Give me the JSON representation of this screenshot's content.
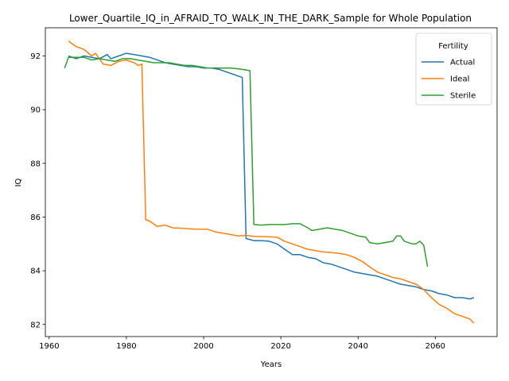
{
  "chart_data": {
    "type": "line",
    "title": "Lower_Quartile_IQ_in_AFRAID_TO_WALK_IN_THE_DARK_Sample for Whole Population",
    "xlabel": "Years",
    "ylabel": "IQ",
    "xlim": [
      1959,
      2076
    ],
    "ylim": [
      81.55,
      93.05
    ],
    "x_ticks": [
      1960,
      1980,
      2000,
      2020,
      2040,
      2060
    ],
    "y_ticks": [
      82,
      84,
      86,
      88,
      90,
      92
    ],
    "grid": false,
    "legend": {
      "title": "Fertility",
      "placement": "top-right"
    },
    "series": [
      {
        "name": "Actual",
        "color": "#1f77b4",
        "points": [
          [
            1965,
            92.0
          ],
          [
            1967,
            91.9
          ],
          [
            1969,
            92.0
          ],
          [
            1971,
            91.95
          ],
          [
            1973,
            91.9
          ],
          [
            1975,
            92.05
          ],
          [
            1976,
            91.9
          ],
          [
            1978,
            92.0
          ],
          [
            1980,
            92.1
          ],
          [
            1982,
            92.05
          ],
          [
            1984,
            92.0
          ],
          [
            1986,
            91.95
          ],
          [
            1988,
            91.85
          ],
          [
            1990,
            91.75
          ],
          [
            1992,
            91.7
          ],
          [
            1994,
            91.65
          ],
          [
            1996,
            91.6
          ],
          [
            1998,
            91.6
          ],
          [
            2000,
            91.55
          ],
          [
            2002,
            91.55
          ],
          [
            2004,
            91.5
          ],
          [
            2006,
            91.4
          ],
          [
            2008,
            91.3
          ],
          [
            2010,
            91.2
          ],
          [
            2011,
            85.2
          ],
          [
            2013,
            85.12
          ],
          [
            2015,
            85.12
          ],
          [
            2017,
            85.1
          ],
          [
            2019,
            85.0
          ],
          [
            2021,
            84.8
          ],
          [
            2023,
            84.6
          ],
          [
            2025,
            84.6
          ],
          [
            2027,
            84.5
          ],
          [
            2029,
            84.45
          ],
          [
            2031,
            84.3
          ],
          [
            2033,
            84.25
          ],
          [
            2035,
            84.15
          ],
          [
            2037,
            84.05
          ],
          [
            2039,
            83.95
          ],
          [
            2041,
            83.9
          ],
          [
            2043,
            83.85
          ],
          [
            2045,
            83.8
          ],
          [
            2047,
            83.7
          ],
          [
            2049,
            83.6
          ],
          [
            2051,
            83.5
          ],
          [
            2053,
            83.45
          ],
          [
            2055,
            83.4
          ],
          [
            2057,
            83.3
          ],
          [
            2059,
            83.25
          ],
          [
            2061,
            83.15
          ],
          [
            2063,
            83.1
          ],
          [
            2065,
            83.0
          ],
          [
            2067,
            83.0
          ],
          [
            2069,
            82.95
          ],
          [
            2070,
            83.0
          ]
        ]
      },
      {
        "name": "Ideal",
        "color": "#ff7f0e",
        "points": [
          [
            1965,
            92.55
          ],
          [
            1967,
            92.35
          ],
          [
            1969,
            92.25
          ],
          [
            1971,
            92.0
          ],
          [
            1972,
            92.1
          ],
          [
            1974,
            91.7
          ],
          [
            1976,
            91.65
          ],
          [
            1978,
            91.8
          ],
          [
            1980,
            91.85
          ],
          [
            1982,
            91.75
          ],
          [
            1983,
            91.65
          ],
          [
            1984,
            91.7
          ],
          [
            1985,
            85.9
          ],
          [
            1986,
            85.85
          ],
          [
            1988,
            85.65
          ],
          [
            1990,
            85.7
          ],
          [
            1992,
            85.6
          ],
          [
            1995,
            85.58
          ],
          [
            1998,
            85.55
          ],
          [
            2001,
            85.55
          ],
          [
            2003,
            85.45
          ],
          [
            2005,
            85.4
          ],
          [
            2007,
            85.35
          ],
          [
            2009,
            85.3
          ],
          [
            2011,
            85.32
          ],
          [
            2013,
            85.28
          ],
          [
            2016,
            85.27
          ],
          [
            2019,
            85.25
          ],
          [
            2021,
            85.1
          ],
          [
            2023,
            85.0
          ],
          [
            2025,
            84.9
          ],
          [
            2027,
            84.8
          ],
          [
            2029,
            84.75
          ],
          [
            2031,
            84.7
          ],
          [
            2033,
            84.68
          ],
          [
            2035,
            84.65
          ],
          [
            2037,
            84.6
          ],
          [
            2039,
            84.5
          ],
          [
            2041,
            84.35
          ],
          [
            2043,
            84.15
          ],
          [
            2045,
            83.95
          ],
          [
            2047,
            83.85
          ],
          [
            2049,
            83.75
          ],
          [
            2051,
            83.7
          ],
          [
            2053,
            83.6
          ],
          [
            2055,
            83.5
          ],
          [
            2057,
            83.3
          ],
          [
            2059,
            83.0
          ],
          [
            2061,
            82.75
          ],
          [
            2063,
            82.6
          ],
          [
            2065,
            82.4
          ],
          [
            2067,
            82.3
          ],
          [
            2069,
            82.2
          ],
          [
            2070,
            82.05
          ]
        ]
      },
      {
        "name": "Sterile",
        "color": "#2ca02c",
        "points": [
          [
            1964,
            91.55
          ],
          [
            1965,
            91.95
          ],
          [
            1967,
            91.95
          ],
          [
            1969,
            91.95
          ],
          [
            1971,
            91.85
          ],
          [
            1973,
            91.9
          ],
          [
            1975,
            91.85
          ],
          [
            1977,
            91.8
          ],
          [
            1979,
            91.9
          ],
          [
            1981,
            91.9
          ],
          [
            1983,
            91.85
          ],
          [
            1985,
            91.8
          ],
          [
            1987,
            91.75
          ],
          [
            1989,
            91.75
          ],
          [
            1991,
            91.75
          ],
          [
            1993,
            91.7
          ],
          [
            1995,
            91.65
          ],
          [
            1997,
            91.65
          ],
          [
            1999,
            91.6
          ],
          [
            2001,
            91.55
          ],
          [
            2003,
            91.55
          ],
          [
            2005,
            91.55
          ],
          [
            2007,
            91.55
          ],
          [
            2009,
            91.52
          ],
          [
            2011,
            91.48
          ],
          [
            2012,
            91.45
          ],
          [
            2013,
            85.72
          ],
          [
            2015,
            85.7
          ],
          [
            2017,
            85.72
          ],
          [
            2019,
            85.72
          ],
          [
            2021,
            85.72
          ],
          [
            2023,
            85.75
          ],
          [
            2025,
            85.75
          ],
          [
            2027,
            85.6
          ],
          [
            2028,
            85.5
          ],
          [
            2030,
            85.55
          ],
          [
            2032,
            85.6
          ],
          [
            2034,
            85.55
          ],
          [
            2036,
            85.5
          ],
          [
            2038,
            85.4
          ],
          [
            2040,
            85.3
          ],
          [
            2042,
            85.25
          ],
          [
            2043,
            85.05
          ],
          [
            2045,
            85.0
          ],
          [
            2047,
            85.05
          ],
          [
            2049,
            85.1
          ],
          [
            2050,
            85.3
          ],
          [
            2051,
            85.3
          ],
          [
            2052,
            85.1
          ],
          [
            2054,
            85.0
          ],
          [
            2055,
            85.0
          ],
          [
            2056,
            85.1
          ],
          [
            2057,
            84.95
          ],
          [
            2058,
            84.15
          ]
        ]
      }
    ]
  }
}
